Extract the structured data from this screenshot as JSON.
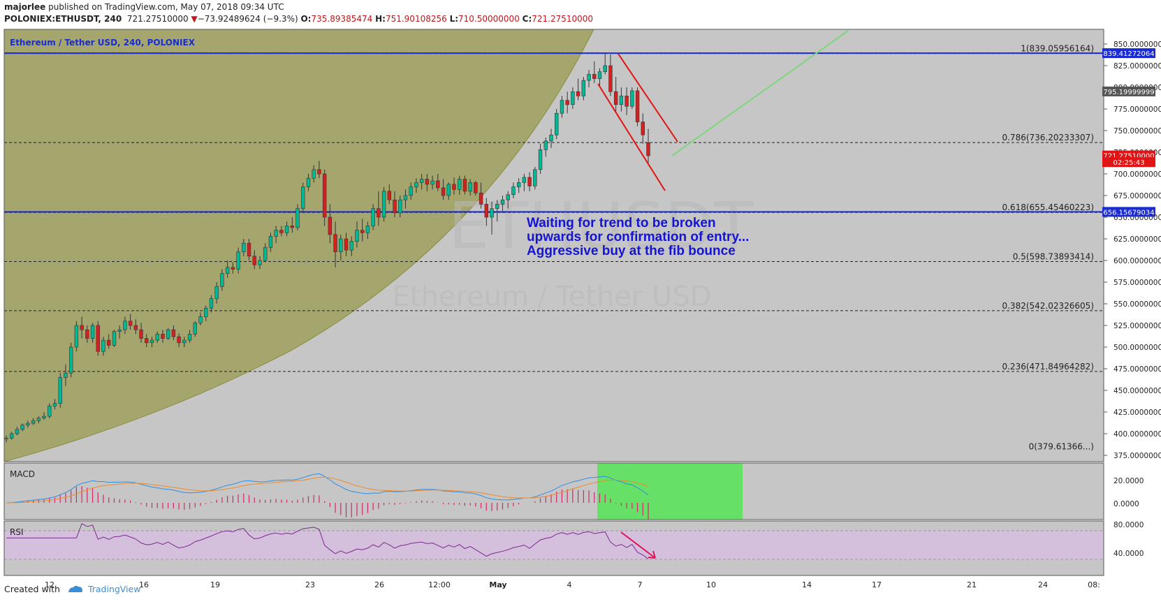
{
  "header": {
    "author": "majorlee",
    "published_text": "published on TradingView.com, May 07, 2018 09:34 UTC",
    "symbol": "POLONIEX:ETHUSDT, 240",
    "last": "721.27510000",
    "change": "−73.92489624 (−9.3%)",
    "o_label": "O:",
    "o": "735.89385474",
    "h_label": "H:",
    "h": "751.90108256",
    "l_label": "L:",
    "l": "710.50000000",
    "c_label": "C:",
    "c": "721.27510000"
  },
  "chart_title": "Ethereum / Tether USD, 240, POLONIEX",
  "watermark": {
    "symbol": "ETHUSDT",
    "name": "Ethereum / Tether USD"
  },
  "annotation": {
    "line1": "Waiting for trend to be broken",
    "line2": "upwards for confirmation of entry...",
    "line3": "Aggressive buy at the fib bounce"
  },
  "panels": {
    "macd": "MACD",
    "rsi": "RSI"
  },
  "footer": {
    "created_with": "Created with",
    "brand": "TradingView"
  },
  "chart_data": {
    "type": "candlestick",
    "y_range": [
      362.5,
      862.5
    ],
    "y_ticks": [
      "850.00000000",
      "825.00000000",
      "800.00000000",
      "775.00000000",
      "750.00000000",
      "725.00000000",
      "700.00000000",
      "675.00000000",
      "650.00000000",
      "625.00000000",
      "600.00000000",
      "575.00000000",
      "550.00000000",
      "525.00000000",
      "500.00000000",
      "475.00000000",
      "450.00000000",
      "425.00000000",
      "400.00000000",
      "375.00000000"
    ],
    "x_ticks": [
      "12",
      "16",
      "19",
      "23",
      "26",
      "12:00",
      "May",
      "4",
      "7",
      "10",
      "14",
      "17",
      "21",
      "24",
      "08:"
    ],
    "price_badges": [
      {
        "label": "839.41272064",
        "value": 839.41,
        "color": "#1a2bd1"
      },
      {
        "label": "795.19999999",
        "value": 795.2,
        "color": "#555555"
      },
      {
        "label": "721.27510000",
        "value": 721.28,
        "color": "#e01414"
      },
      {
        "label": "02:25:43",
        "value": 713.6,
        "color": "#e01414"
      },
      {
        "label": "656.15679034",
        "value": 656.16,
        "color": "#1a2bd1"
      }
    ],
    "horizontal_lines": [
      {
        "value": 839.41,
        "color": "#1a2bd1"
      },
      {
        "value": 656.16,
        "color": "#1a2bd1"
      }
    ],
    "fib_levels": [
      {
        "label": "1(839.05956164)",
        "value": 839.06
      },
      {
        "label": "0.786(736.20233307)",
        "value": 736.2
      },
      {
        "label": "0.618(655.45460223)",
        "value": 655.45
      },
      {
        "label": "0.5(598.73893414)",
        "value": 598.74
      },
      {
        "label": "0.382(542.02326605)",
        "value": 542.02
      },
      {
        "label": "0.236(471.84964282)",
        "value": 471.85
      },
      {
        "label": "0(379.61366...)",
        "value": 379.6
      }
    ],
    "candles_ohlc": [
      [
        394,
        398,
        390,
        395
      ],
      [
        395,
        402,
        393,
        400
      ],
      [
        400,
        408,
        398,
        405
      ],
      [
        405,
        412,
        403,
        410
      ],
      [
        410,
        415,
        407,
        412
      ],
      [
        412,
        418,
        410,
        415
      ],
      [
        415,
        420,
        412,
        418
      ],
      [
        418,
        425,
        416,
        420
      ],
      [
        420,
        435,
        418,
        432
      ],
      [
        432,
        440,
        428,
        435
      ],
      [
        435,
        470,
        430,
        465
      ],
      [
        465,
        480,
        455,
        470
      ],
      [
        470,
        505,
        465,
        500
      ],
      [
        500,
        530,
        495,
        525
      ],
      [
        525,
        535,
        510,
        520
      ],
      [
        520,
        525,
        505,
        510
      ],
      [
        510,
        528,
        505,
        525
      ],
      [
        525,
        530,
        490,
        495
      ],
      [
        495,
        512,
        490,
        508
      ],
      [
        508,
        515,
        498,
        502
      ],
      [
        502,
        520,
        500,
        518
      ],
      [
        518,
        525,
        510,
        520
      ],
      [
        520,
        535,
        515,
        530
      ],
      [
        530,
        538,
        520,
        525
      ],
      [
        525,
        532,
        515,
        520
      ],
      [
        520,
        528,
        505,
        510
      ],
      [
        510,
        515,
        500,
        505
      ],
      [
        505,
        512,
        500,
        508
      ],
      [
        508,
        518,
        505,
        515
      ],
      [
        515,
        520,
        505,
        510
      ],
      [
        510,
        522,
        508,
        520
      ],
      [
        520,
        525,
        508,
        512
      ],
      [
        512,
        516,
        500,
        505
      ],
      [
        505,
        512,
        500,
        508
      ],
      [
        508,
        520,
        505,
        515
      ],
      [
        515,
        530,
        512,
        528
      ],
      [
        528,
        540,
        525,
        535
      ],
      [
        535,
        548,
        530,
        545
      ],
      [
        545,
        560,
        540,
        556
      ],
      [
        556,
        575,
        550,
        570
      ],
      [
        570,
        590,
        565,
        585
      ],
      [
        585,
        600,
        580,
        592
      ],
      [
        592,
        598,
        585,
        590
      ],
      [
        590,
        615,
        585,
        610
      ],
      [
        610,
        625,
        605,
        620
      ],
      [
        620,
        625,
        600,
        605
      ],
      [
        605,
        612,
        590,
        595
      ],
      [
        595,
        605,
        590,
        600
      ],
      [
        600,
        620,
        598,
        615
      ],
      [
        615,
        632,
        610,
        628
      ],
      [
        628,
        640,
        620,
        635
      ],
      [
        635,
        640,
        628,
        632
      ],
      [
        632,
        645,
        628,
        640
      ],
      [
        640,
        650,
        632,
        638
      ],
      [
        638,
        665,
        635,
        660
      ],
      [
        660,
        690,
        655,
        685
      ],
      [
        685,
        700,
        680,
        695
      ],
      [
        695,
        710,
        690,
        705
      ],
      [
        705,
        715,
        695,
        700
      ],
      [
        700,
        705,
        640,
        650
      ],
      [
        650,
        665,
        620,
        630
      ],
      [
        630,
        645,
        592,
        610
      ],
      [
        610,
        630,
        600,
        625
      ],
      [
        625,
        632,
        605,
        612
      ],
      [
        612,
        628,
        605,
        622
      ],
      [
        622,
        645,
        615,
        635
      ],
      [
        635,
        648,
        622,
        632
      ],
      [
        632,
        645,
        625,
        640
      ],
      [
        640,
        665,
        635,
        660
      ],
      [
        660,
        680,
        640,
        650
      ],
      [
        650,
        685,
        645,
        680
      ],
      [
        680,
        688,
        665,
        670
      ],
      [
        670,
        680,
        650,
        655
      ],
      [
        655,
        675,
        650,
        670
      ],
      [
        670,
        682,
        660,
        675
      ],
      [
        675,
        690,
        670,
        685
      ],
      [
        685,
        695,
        678,
        690
      ],
      [
        690,
        700,
        682,
        694
      ],
      [
        694,
        700,
        680,
        688
      ],
      [
        688,
        698,
        682,
        692
      ],
      [
        692,
        700,
        680,
        684
      ],
      [
        684,
        694,
        670,
        675
      ],
      [
        675,
        690,
        670,
        688
      ],
      [
        688,
        696,
        676,
        682
      ],
      [
        682,
        698,
        676,
        694
      ],
      [
        694,
        698,
        676,
        680
      ],
      [
        680,
        694,
        675,
        690
      ],
      [
        690,
        692,
        675,
        678
      ],
      [
        678,
        690,
        660,
        665
      ],
      [
        665,
        672,
        640,
        650
      ],
      [
        650,
        668,
        630,
        660
      ],
      [
        660,
        670,
        645,
        665
      ],
      [
        665,
        675,
        655,
        670
      ],
      [
        670,
        680,
        660,
        676
      ],
      [
        676,
        690,
        672,
        685
      ],
      [
        685,
        695,
        678,
        690
      ],
      [
        690,
        700,
        680,
        696
      ],
      [
        696,
        702,
        680,
        686
      ],
      [
        686,
        708,
        682,
        705
      ],
      [
        705,
        735,
        700,
        728
      ],
      [
        728,
        742,
        720,
        738
      ],
      [
        738,
        752,
        730,
        745
      ],
      [
        745,
        775,
        740,
        770
      ],
      [
        770,
        790,
        765,
        785
      ],
      [
        785,
        795,
        770,
        780
      ],
      [
        780,
        800,
        775,
        795
      ],
      [
        795,
        810,
        785,
        790
      ],
      [
        790,
        812,
        785,
        808
      ],
      [
        808,
        820,
        800,
        815
      ],
      [
        815,
        830,
        805,
        810
      ],
      [
        810,
        822,
        800,
        818
      ],
      [
        818,
        840,
        815,
        825
      ],
      [
        825,
        838,
        790,
        795
      ],
      [
        795,
        812,
        770,
        780
      ],
      [
        780,
        800,
        772,
        790
      ],
      [
        790,
        800,
        768,
        778
      ],
      [
        778,
        800,
        775,
        796
      ],
      [
        796,
        800,
        755,
        760
      ],
      [
        760,
        770,
        735,
        745
      ],
      [
        736,
        752,
        710,
        721
      ]
    ]
  }
}
